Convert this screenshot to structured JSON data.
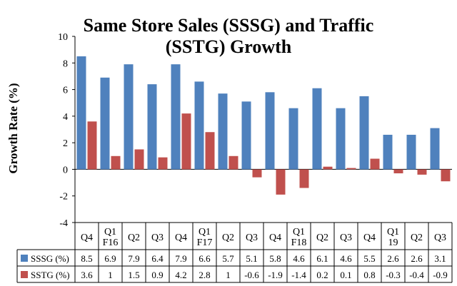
{
  "chart_data": {
    "type": "bar",
    "title_line1": "Same Store Sales (SSSG) and Traffic",
    "title_line2": "(SSTG) Growth",
    "ylabel": "Growth Rate (%)",
    "xlabel": "",
    "ylim": [
      -4,
      10
    ],
    "yticks": [
      -4,
      -2,
      0,
      2,
      4,
      6,
      8,
      10
    ],
    "grid": false,
    "legend": "data-table",
    "categories": [
      [
        "Q4"
      ],
      [
        "Q1",
        "F16"
      ],
      [
        "Q2"
      ],
      [
        "Q3"
      ],
      [
        "Q4"
      ],
      [
        "Q1",
        "F17"
      ],
      [
        "Q2"
      ],
      [
        "Q3"
      ],
      [
        "Q4"
      ],
      [
        "Q1",
        "F18"
      ],
      [
        "Q2"
      ],
      [
        "Q3"
      ],
      [
        "Q4"
      ],
      [
        "Q1",
        "19"
      ],
      [
        "Q2"
      ],
      [
        "Q3"
      ]
    ],
    "series": [
      {
        "name": "SSSG (%)",
        "color": "#4f81bd",
        "values": [
          8.5,
          6.9,
          7.9,
          6.4,
          7.9,
          6.6,
          5.7,
          5.1,
          5.8,
          4.6,
          6.1,
          4.6,
          5.5,
          2.6,
          2.6,
          3.1
        ]
      },
      {
        "name": "SSTG (%)",
        "color": "#c0504d",
        "values": [
          3.6,
          1,
          1.5,
          0.9,
          4.2,
          2.8,
          1,
          -0.6,
          -1.9,
          -1.4,
          0.2,
          0.1,
          0.8,
          -0.3,
          -0.4,
          -0.9
        ]
      }
    ]
  }
}
